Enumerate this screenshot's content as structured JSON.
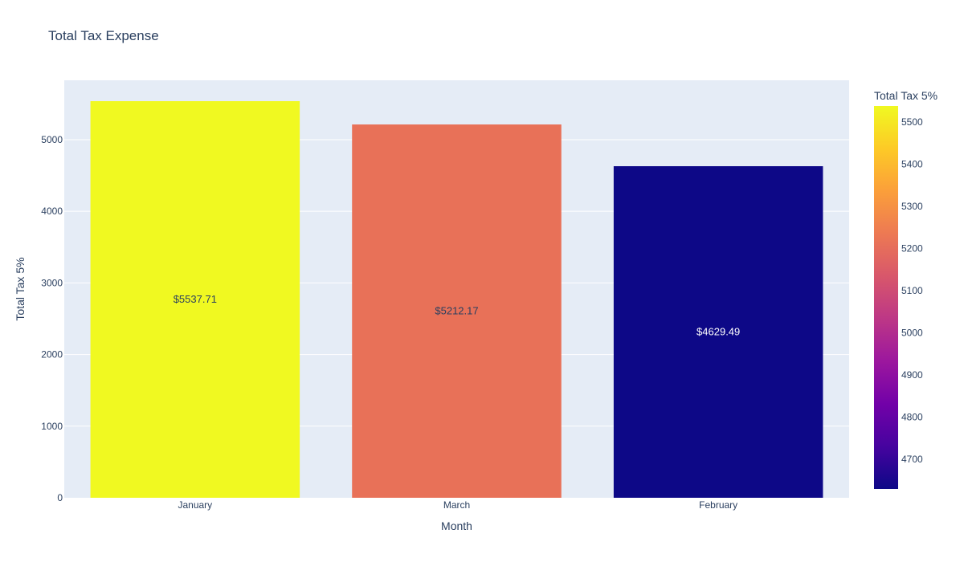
{
  "chart_data": {
    "type": "bar",
    "title": "Total Tax Expense",
    "xlabel": "Month",
    "ylabel": "Total Tax 5%",
    "categories": [
      "January",
      "March",
      "February"
    ],
    "values": [
      5537.71,
      5212.17,
      4629.49
    ],
    "data_labels": [
      "$5537.71",
      "$5212.17",
      "$4629.49"
    ],
    "ylim": [
      0,
      5829
    ],
    "yticks": [
      0,
      1000,
      2000,
      3000,
      4000,
      5000
    ],
    "grid": true,
    "colorbar": {
      "title": "Total Tax 5%",
      "range": [
        4629.49,
        5537.71
      ],
      "ticks": [
        4700,
        4800,
        4900,
        5000,
        5100,
        5200,
        5300,
        5400,
        5500
      ],
      "colorscale": [
        "#0d0887",
        "#46039f",
        "#7201a8",
        "#9c179e",
        "#bd3786",
        "#d8576b",
        "#ed7953",
        "#fb9f3a",
        "#fdca26",
        "#f0f921"
      ]
    },
    "colors": {
      "plot_background": "#e5ecf6",
      "grid": "#ffffff",
      "text": "#2a3f5f"
    }
  }
}
